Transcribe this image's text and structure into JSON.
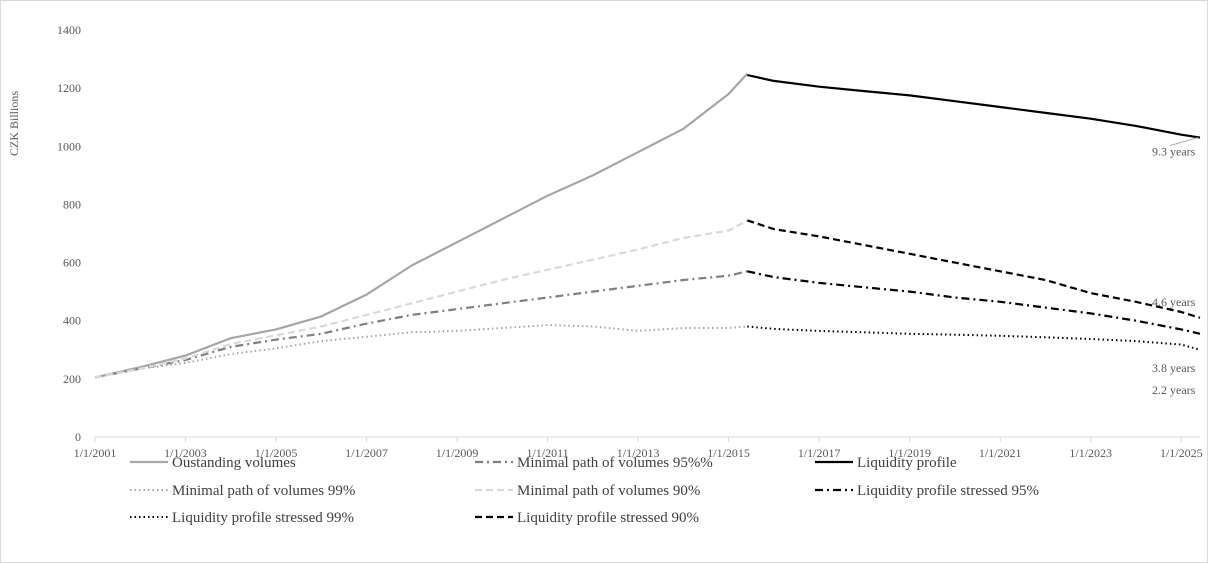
{
  "chart_data": {
    "type": "line",
    "ylabel": "CZK Billions",
    "xlabel": "",
    "ylim": [
      0,
      1400
    ],
    "yticks": [
      0,
      200,
      400,
      600,
      800,
      1000,
      1200,
      1400
    ],
    "xlim": [
      "2001-01-01",
      "2025-06-01"
    ],
    "xticks": [
      "1/1/2001",
      "1/1/2003",
      "1/1/2005",
      "1/1/2007",
      "1/1/2009",
      "1/1/2011",
      "1/1/2013",
      "1/1/2015",
      "1/1/2017",
      "1/1/2019",
      "1/1/2021",
      "1/1/2023",
      "1/1/2025"
    ],
    "grid": false,
    "legend_position": "bottom",
    "series": [
      {
        "name": "Oustanding volumes",
        "color": "#a6a6a6",
        "style": "solid",
        "x": [
          "2001-01-01",
          "2002-01-01",
          "2003-01-01",
          "2004-01-01",
          "2005-01-01",
          "2006-01-01",
          "2007-01-01",
          "2008-01-01",
          "2009-01-01",
          "2010-01-01",
          "2011-01-01",
          "2012-01-01",
          "2013-01-01",
          "2014-01-01",
          "2015-01-01",
          "2015-06-01"
        ],
        "values": [
          205,
          240,
          280,
          340,
          370,
          415,
          490,
          590,
          670,
          750,
          830,
          900,
          980,
          1060,
          1180,
          1250
        ]
      },
      {
        "name": "Minimal path of volumes 95%%",
        "color": "#7f7f7f",
        "style": "dashdot",
        "x": [
          "2001-01-01",
          "2002-01-01",
          "2003-01-01",
          "2004-01-01",
          "2005-01-01",
          "2006-01-01",
          "2007-01-01",
          "2008-01-01",
          "2009-01-01",
          "2010-01-01",
          "2011-01-01",
          "2012-01-01",
          "2013-01-01",
          "2014-01-01",
          "2015-01-01",
          "2015-06-01"
        ],
        "values": [
          205,
          235,
          265,
          310,
          335,
          355,
          390,
          420,
          440,
          460,
          480,
          500,
          520,
          540,
          555,
          570
        ]
      },
      {
        "name": "Liquidity profile",
        "color": "#000000",
        "style": "solid",
        "x": [
          "2015-06-01",
          "2016-01-01",
          "2017-01-01",
          "2018-01-01",
          "2019-01-01",
          "2020-01-01",
          "2021-01-01",
          "2022-01-01",
          "2023-01-01",
          "2024-01-01",
          "2025-01-01",
          "2025-06-01"
        ],
        "values": [
          1245,
          1225,
          1205,
          1190,
          1175,
          1155,
          1135,
          1115,
          1095,
          1070,
          1040,
          1030
        ]
      },
      {
        "name": "Minimal path of volumes 99%",
        "color": "#a6a6a6",
        "style": "dotted",
        "x": [
          "2001-01-01",
          "2002-01-01",
          "2003-01-01",
          "2004-01-01",
          "2005-01-01",
          "2006-01-01",
          "2007-01-01",
          "2008-01-01",
          "2009-01-01",
          "2010-01-01",
          "2011-01-01",
          "2012-01-01",
          "2013-01-01",
          "2014-01-01",
          "2015-01-01",
          "2015-06-01"
        ],
        "values": [
          205,
          235,
          255,
          285,
          305,
          330,
          345,
          360,
          365,
          375,
          385,
          380,
          365,
          375,
          375,
          380
        ]
      },
      {
        "name": "Minimal path of volumes 90%",
        "color": "#d9d9d9",
        "style": "dashed",
        "x": [
          "2001-01-01",
          "2002-01-01",
          "2003-01-01",
          "2004-01-01",
          "2005-01-01",
          "2006-01-01",
          "2007-01-01",
          "2008-01-01",
          "2009-01-01",
          "2010-01-01",
          "2011-01-01",
          "2012-01-01",
          "2013-01-01",
          "2014-01-01",
          "2015-01-01",
          "2015-06-01"
        ],
        "values": [
          205,
          235,
          270,
          320,
          350,
          380,
          420,
          460,
          500,
          540,
          575,
          610,
          645,
          685,
          710,
          745
        ]
      },
      {
        "name": "Liquidity profile stressed 95%",
        "color": "#000000",
        "style": "dashdot",
        "x": [
          "2015-06-01",
          "2016-01-01",
          "2017-01-01",
          "2018-01-01",
          "2019-01-01",
          "2020-01-01",
          "2021-01-01",
          "2022-01-01",
          "2023-01-01",
          "2024-01-01",
          "2025-01-01",
          "2025-06-01"
        ],
        "values": [
          570,
          550,
          530,
          515,
          500,
          480,
          465,
          445,
          425,
          400,
          370,
          355
        ]
      },
      {
        "name": "Liquidity profile stressed 99%",
        "color": "#000000",
        "style": "dotted",
        "x": [
          "2015-06-01",
          "2016-01-01",
          "2017-01-01",
          "2018-01-01",
          "2019-01-01",
          "2020-01-01",
          "2021-01-01",
          "2022-01-01",
          "2023-01-01",
          "2024-01-01",
          "2025-01-01",
          "2025-06-01"
        ],
        "values": [
          380,
          372,
          365,
          360,
          355,
          352,
          348,
          343,
          337,
          330,
          318,
          300
        ]
      },
      {
        "name": "Liquidity profile stressed 90%",
        "color": "#000000",
        "style": "dashed",
        "x": [
          "2015-06-01",
          "2016-01-01",
          "2017-01-01",
          "2018-01-01",
          "2019-01-01",
          "2020-01-01",
          "2021-01-01",
          "2022-01-01",
          "2023-01-01",
          "2024-01-01",
          "2025-01-01",
          "2025-06-01"
        ],
        "values": [
          745,
          715,
          690,
          660,
          630,
          600,
          570,
          540,
          495,
          465,
          430,
          410
        ]
      }
    ],
    "annotations": [
      {
        "text": "9.3 years",
        "x": "2025-06-01",
        "y": 1030
      },
      {
        "text": "4.6 years",
        "x": "2025-06-01",
        "y": 410
      },
      {
        "text": "3.8 years",
        "x": "2025-06-01",
        "y": 300
      },
      {
        "text": "2.2 years",
        "x": "2025-06-01",
        "y": 300
      }
    ]
  }
}
